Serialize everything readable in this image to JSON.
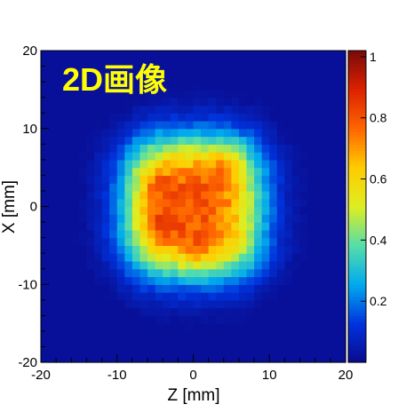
{
  "chart_data": {
    "type": "heatmap",
    "title": "2D画像",
    "title_color": "#ffff00",
    "xlabel": "Z [mm]",
    "ylabel": "X [mm]",
    "xlim": [
      -20,
      20
    ],
    "ylim": [
      -20,
      20
    ],
    "x_ticks": [
      "-20",
      "-10",
      "0",
      "10",
      "20"
    ],
    "y_ticks": [
      "-20",
      "-10",
      "0",
      "10",
      "20"
    ],
    "colorbar": {
      "range": [
        0.0,
        1.02
      ],
      "tick_values": [
        0.2,
        0.4,
        0.6,
        0.8,
        1.0
      ],
      "tick_labels": [
        "0.2",
        "0.4",
        "0.6",
        "0.8",
        "1"
      ],
      "colors": [
        "#0a0a8c",
        "#0033dd",
        "#00aaee",
        "#55ddaa",
        "#ddee22",
        "#ffcc00",
        "#ff6600",
        "#dd2200",
        "#7a0a0a"
      ]
    },
    "bins": [
      40,
      40
    ],
    "grid": false,
    "legend": "none",
    "description_of_distribution": {
      "plateau_region_z": [
        -8,
        8
      ],
      "plateau_region_x": [
        -8,
        8
      ],
      "plateau_level": 0.85,
      "peak_level": 1.0,
      "edge_width_mm": 3.2,
      "hot_spots": [
        {
          "z": -5,
          "x": -2.5,
          "value": 1.0
        },
        {
          "z": -5.5,
          "x": 3,
          "value": 0.95
        },
        {
          "z": 4,
          "x": 6,
          "value": 0.97
        },
        {
          "z": 1,
          "x": -6.5,
          "value": 0.9
        }
      ]
    }
  }
}
